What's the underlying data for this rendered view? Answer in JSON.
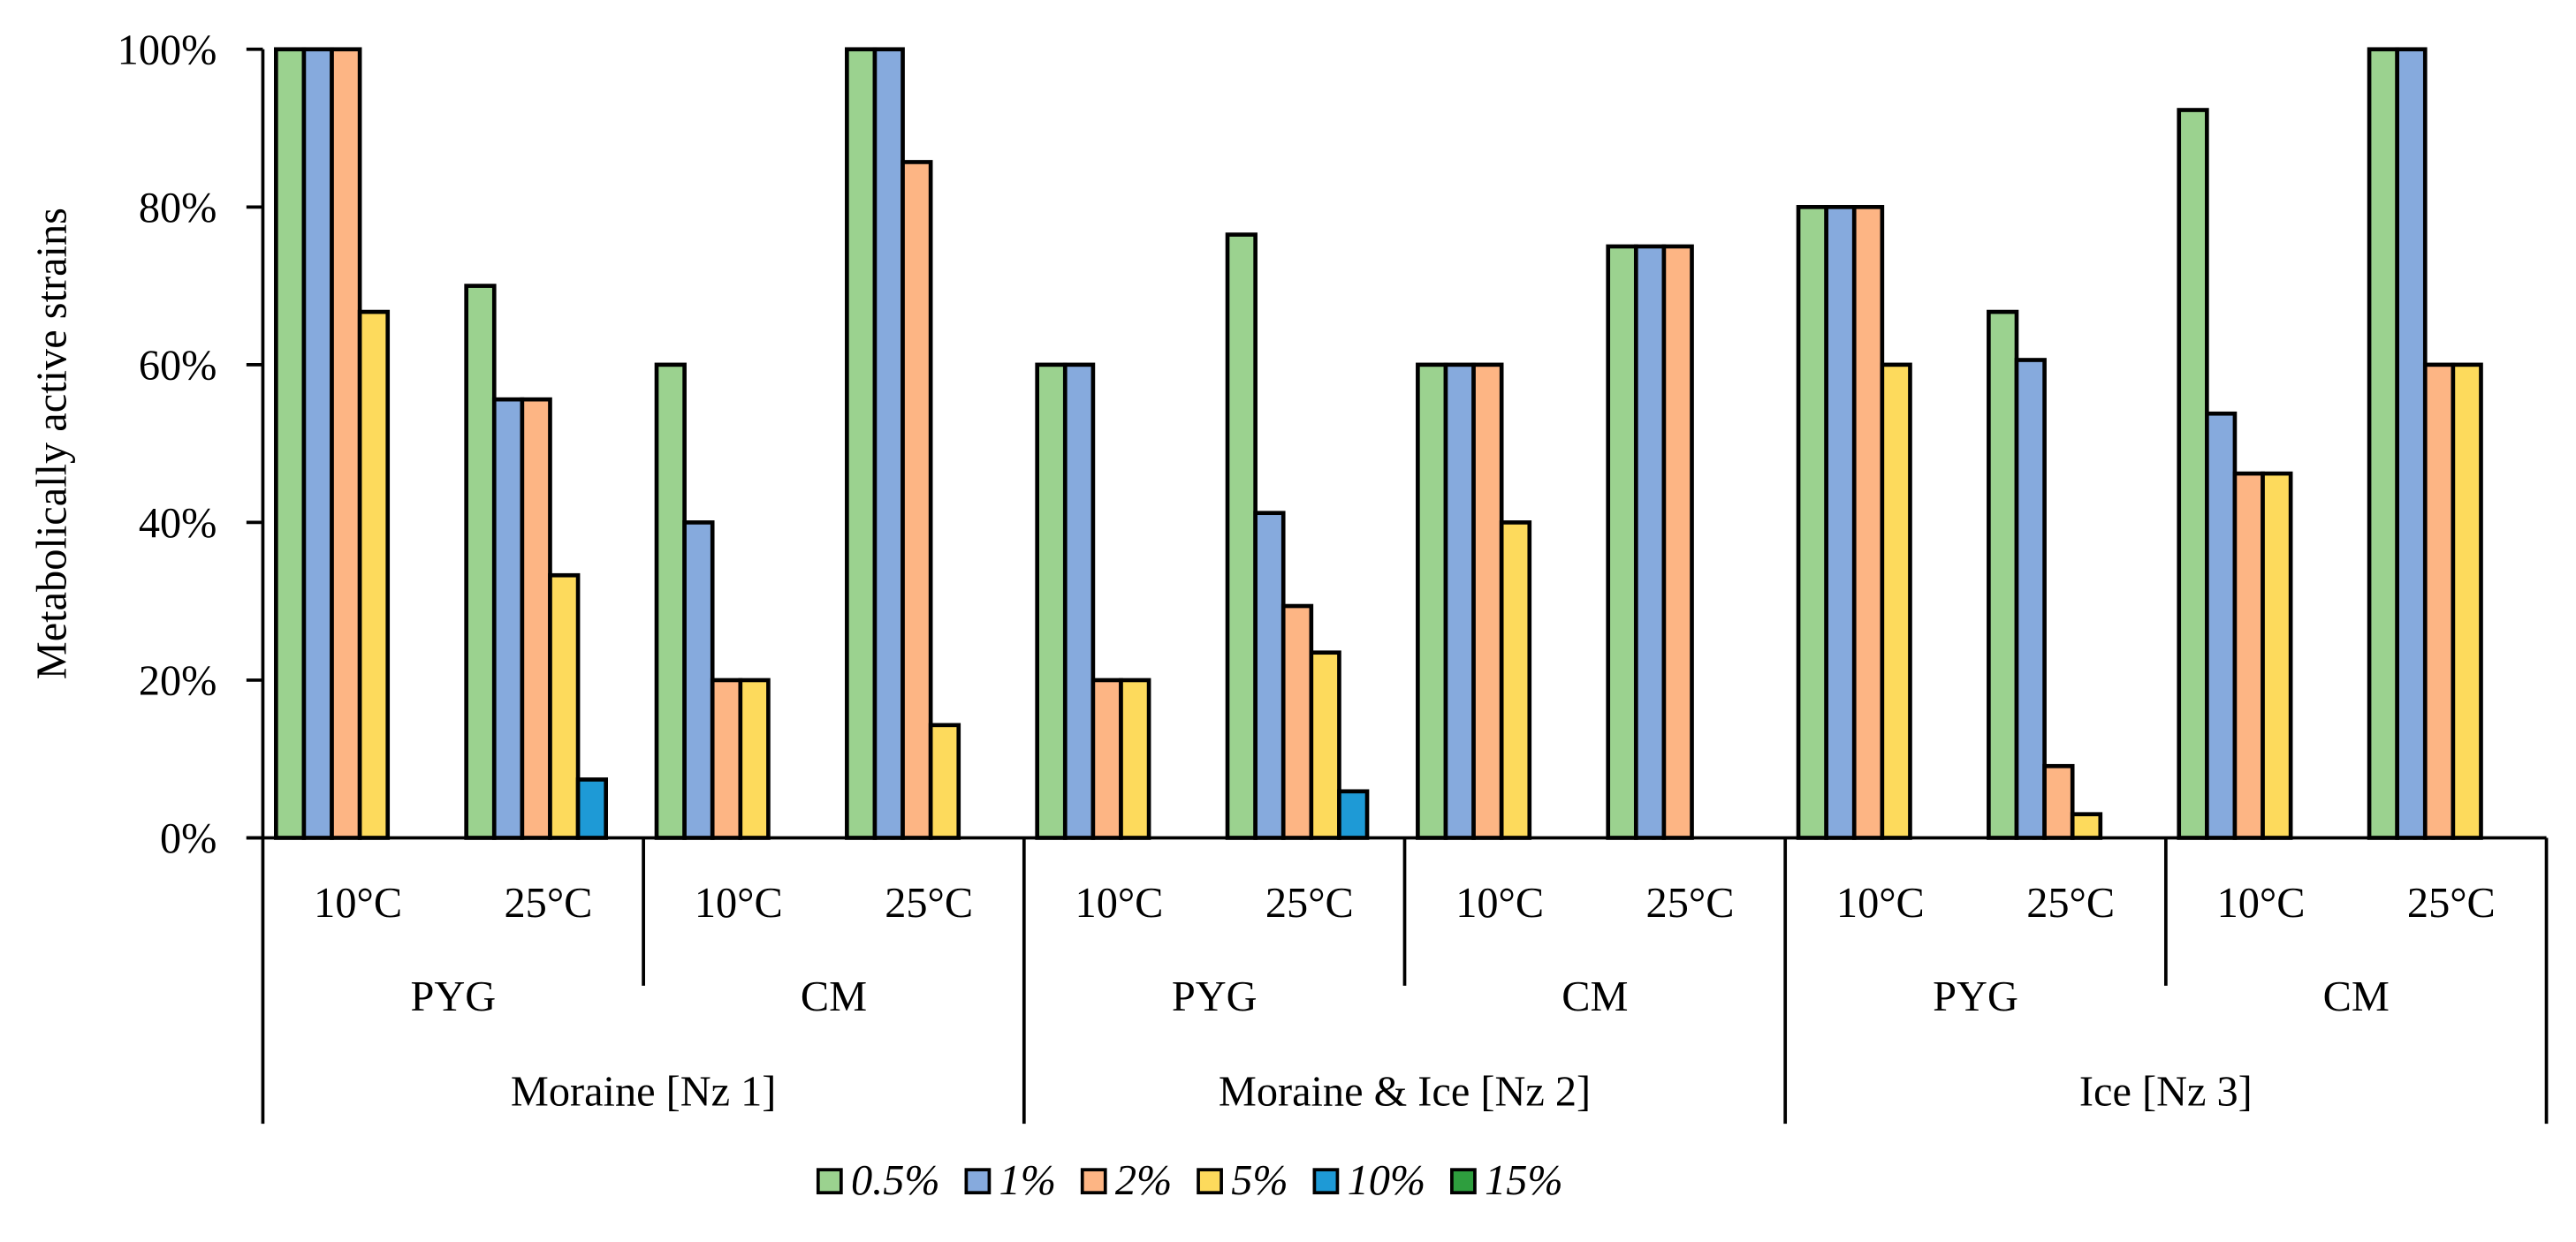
{
  "chart_data": {
    "type": "bar",
    "ylabel": "Metabolically active strains",
    "xlabel": "",
    "ylim": [
      0,
      100
    ],
    "yticks": [
      "0%",
      "20%",
      "40%",
      "60%",
      "80%",
      "100%"
    ],
    "grid": false,
    "legend_position": "bottom",
    "sites": [
      "Moraine [Nz 1]",
      "Moraine & Ice [Nz 2]",
      "Ice [Nz 3]"
    ],
    "media": [
      "PYG",
      "CM"
    ],
    "temperatures": [
      "10°C",
      "25°C"
    ],
    "categories": [
      "Moraine [Nz 1] PYG 10°C",
      "Moraine [Nz 1] PYG 25°C",
      "Moraine [Nz 1] CM 10°C",
      "Moraine [Nz 1] CM 25°C",
      "Moraine & Ice [Nz 2] PYG 10°C",
      "Moraine & Ice [Nz 2] PYG 25°C",
      "Moraine & Ice [Nz 2] CM 10°C",
      "Moraine & Ice [Nz 2] CM 25°C",
      "Ice [Nz 3] PYG 10°C",
      "Ice [Nz 3] PYG 25°C",
      "Ice [Nz 3] CM 10°C",
      "Ice [Nz 3] CM 25°C"
    ],
    "series": [
      {
        "name": "0.5%",
        "color": "#9BD28F",
        "values": [
          100,
          70,
          60,
          100,
          60,
          76.5,
          60,
          75,
          80,
          66.7,
          92.3,
          100
        ]
      },
      {
        "name": "1%",
        "color": "#86AADD",
        "values": [
          100,
          55.6,
          40,
          100,
          60,
          41.2,
          60,
          75,
          80,
          60.6,
          53.8,
          100
        ]
      },
      {
        "name": "2%",
        "color": "#FDB584",
        "values": [
          100,
          55.6,
          20,
          85.7,
          20,
          29.4,
          60,
          75,
          80,
          9.1,
          46.2,
          60
        ]
      },
      {
        "name": "5%",
        "color": "#FDDA5C",
        "values": [
          66.7,
          33.3,
          20,
          14.3,
          20,
          23.5,
          40,
          0,
          60,
          3.0,
          46.2,
          60
        ]
      },
      {
        "name": "10%",
        "color": "#1E9AD6",
        "values": [
          0,
          7.4,
          0,
          0,
          0,
          5.9,
          0,
          0,
          0,
          0,
          0,
          0
        ]
      },
      {
        "name": "15%",
        "color": "#2E9E3E",
        "values": [
          0,
          0,
          0,
          0,
          0,
          0,
          0,
          0,
          0,
          0,
          0,
          0
        ]
      }
    ]
  }
}
